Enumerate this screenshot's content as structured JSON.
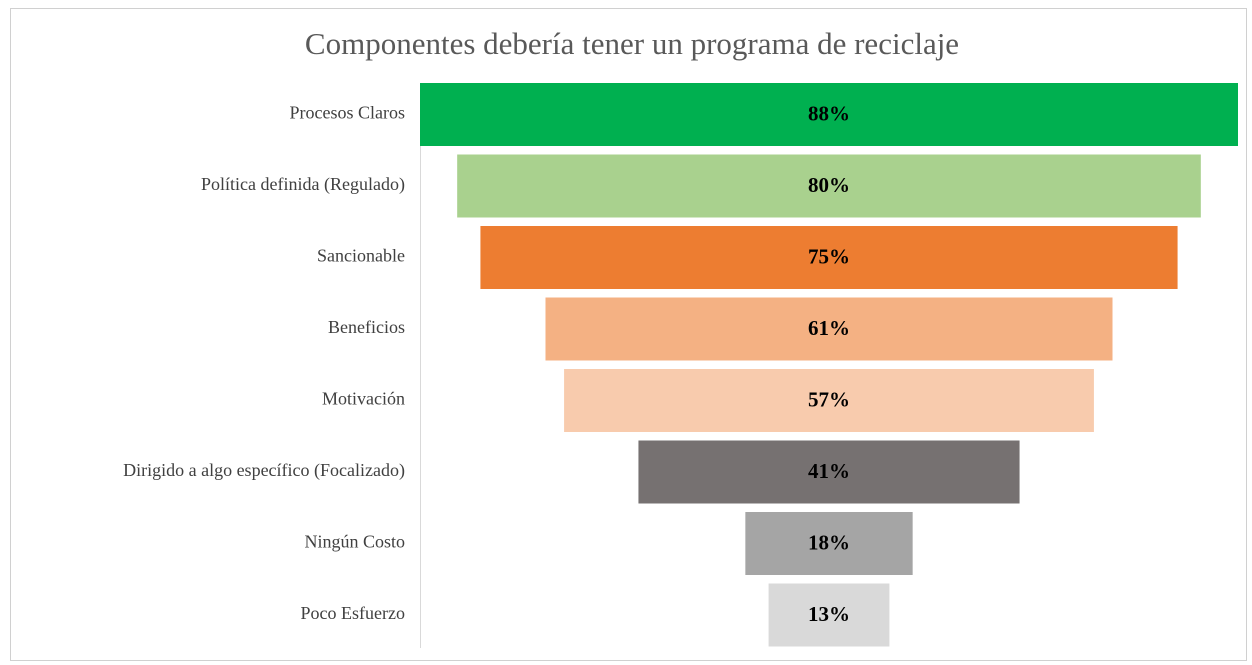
{
  "chart_data": {
    "type": "funnel",
    "title": "Componentes debería tener un programa de reciclaje",
    "categories": [
      "Procesos Claros",
      "Política definida (Regulado)",
      "Sancionable",
      "Beneficios",
      "Motivación",
      "Dirigido a algo específico (Focalizado)",
      "Ningún Costo",
      "Poco Esfuerzo"
    ],
    "values": [
      88,
      80,
      75,
      61,
      57,
      41,
      18,
      13
    ],
    "value_labels": [
      "88%",
      "80%",
      "75%",
      "61%",
      "57%",
      "41%",
      "18%",
      "13%"
    ],
    "colors": [
      "#00b050",
      "#a9d18e",
      "#ed7d31",
      "#f4b183",
      "#f8cbad",
      "#767171",
      "#a5a5a5",
      "#d9d9d9"
    ]
  }
}
